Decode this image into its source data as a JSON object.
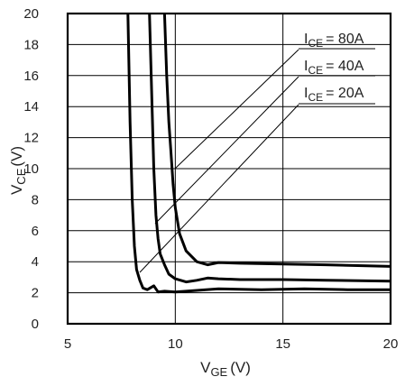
{
  "chart_data": {
    "type": "line",
    "xlabel": {
      "main": "V",
      "sub": "GE",
      "unit": "(V)"
    },
    "ylabel": {
      "main": "V",
      "sub": "CE",
      "unit": "(V)"
    },
    "xlim": [
      5,
      20
    ],
    "ylim": [
      0,
      20
    ],
    "xticks": [
      5,
      10,
      15,
      20
    ],
    "yticks": [
      0,
      2,
      4,
      6,
      8,
      10,
      12,
      14,
      16,
      18,
      20
    ],
    "grid": true,
    "series": [
      {
        "name": "IC = 20A",
        "label": {
          "main": "I",
          "sub": "CE",
          "value": "= 20A"
        },
        "x": [
          7.8,
          7.9,
          8.0,
          8.1,
          8.2,
          8.35,
          8.5,
          8.7,
          9.0,
          9.2,
          9.5,
          10.0,
          12.0,
          14.0,
          16.0,
          18.0,
          20.0
        ],
        "y": [
          20,
          13,
          8,
          5,
          3.5,
          2.8,
          2.3,
          2.2,
          2.45,
          2.05,
          2.1,
          2.05,
          2.25,
          2.2,
          2.25,
          2.2,
          2.2
        ]
      },
      {
        "name": "IC = 40A",
        "label": {
          "main": "I",
          "sub": "CE",
          "value": "= 40A"
        },
        "x": [
          8.8,
          8.9,
          9.0,
          9.1,
          9.2,
          9.3,
          9.5,
          9.7,
          10.0,
          10.5,
          11.0,
          11.5,
          12.0,
          13.0,
          15.0,
          17.0,
          20.0
        ],
        "y": [
          20,
          15,
          10,
          7,
          5.5,
          4.5,
          3.8,
          3.2,
          2.9,
          2.7,
          2.8,
          2.95,
          2.9,
          2.85,
          2.85,
          2.8,
          2.75
        ]
      },
      {
        "name": "IC = 80A",
        "label": {
          "main": "I",
          "sub": "CE",
          "value": "= 80A"
        },
        "x": [
          9.5,
          9.6,
          9.7,
          9.8,
          9.9,
          10.0,
          10.2,
          10.5,
          11.0,
          11.5,
          12.0,
          13.0,
          15.0,
          17.0,
          20.0
        ],
        "y": [
          20,
          16,
          13,
          11,
          9,
          7.5,
          5.8,
          4.7,
          4.0,
          3.8,
          3.95,
          3.9,
          3.85,
          3.8,
          3.7
        ]
      }
    ]
  }
}
